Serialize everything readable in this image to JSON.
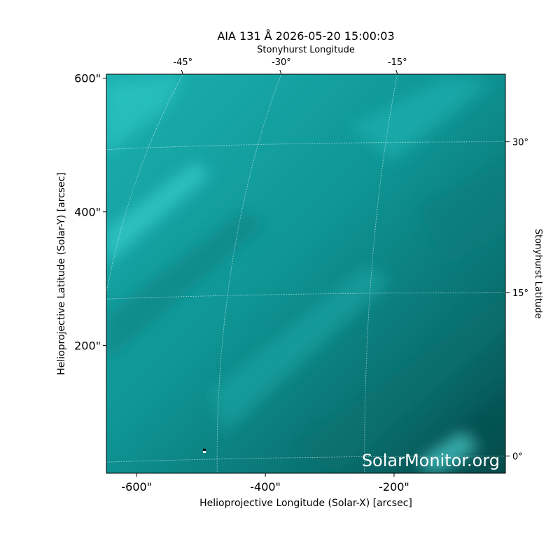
{
  "chart_data": {
    "type": "image",
    "title": "AIA 131 Å 2026-05-20 15:00:03",
    "xlabel": "Helioprojective Longitude (Solar-X) [arcsec]",
    "ylabel": "Helioprojective Latitude (Solar-Y) [arcsec]",
    "x2label": "Stonyhurst Longitude",
    "y2label": "Stonyhurst Latitude",
    "xlim": [
      -647,
      -27
    ],
    "ylim": [
      9,
      606
    ],
    "xticks": [
      {
        "value": -600,
        "label": "-600\""
      },
      {
        "value": -400,
        "label": "-400\""
      },
      {
        "value": -200,
        "label": "-200\""
      }
    ],
    "yticks": [
      {
        "value": 200,
        "label": "200\""
      },
      {
        "value": 400,
        "label": "400\""
      },
      {
        "value": 600,
        "label": "600\""
      }
    ],
    "x2ticks": [
      {
        "value": -45,
        "label": "-45°"
      },
      {
        "value": -30,
        "label": "-30°"
      },
      {
        "value": -15,
        "label": "-15°"
      }
    ],
    "y2ticks": [
      {
        "value": 0,
        "label": "0°"
      },
      {
        "value": 15,
        "label": "15°"
      },
      {
        "value": 30,
        "label": "30°"
      }
    ],
    "watermark": "SolarMonitor.org",
    "grid": true
  }
}
